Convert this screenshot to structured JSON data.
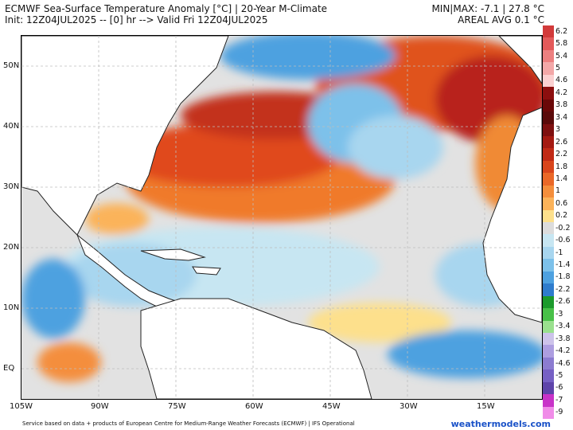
{
  "header": {
    "title": "ECMWF Sea-Surface Temperature Anomaly [°C] | 20-Year M-Climate",
    "init_line": "Init: 12Z04JUL2025 -- [0] hr --> Valid Fri 12Z04JUL2025",
    "minmax": "MIN|MAX: -7.1 | 27.8 °C",
    "areal_avg": "AREAL AVG 0.1 °C"
  },
  "axes": {
    "lat_labels": [
      "50N",
      "40N",
      "30N",
      "20N",
      "10N",
      "EQ"
    ],
    "lon_labels": [
      "105W",
      "90W",
      "75W",
      "60W",
      "45W",
      "30W",
      "15W"
    ]
  },
  "colorbar": {
    "labels": [
      "6.2",
      "5.8",
      "5.4",
      "5",
      "4.6",
      "4.2",
      "3.8",
      "3.4",
      "3",
      "2.6",
      "2.2",
      "1.8",
      "1.4",
      "1",
      "0.6",
      "0.2",
      "-0.2",
      "-0.6",
      "-1",
      "-1.4",
      "-1.8",
      "-2.2",
      "-2.6",
      "-3",
      "-3.4",
      "-3.8",
      "-4.2",
      "-4.6",
      "-5",
      "-6",
      "-7",
      "-9"
    ],
    "colors": [
      "#d23a3a",
      "#e35a5a",
      "#ec8080",
      "#f3a8a8",
      "#fbd0d0",
      "#8c0e0e",
      "#6a0808",
      "#5a0a0a",
      "#7e1010",
      "#a41a12",
      "#c02a16",
      "#d8451c",
      "#ea6828",
      "#f48e3c",
      "#fbb35a",
      "#fde08c",
      "#dcdcdc",
      "#c7e6f2",
      "#a8d6ef",
      "#7dc1ea",
      "#4ea1e0",
      "#2f7ccd",
      "#1c9a2c",
      "#48c048",
      "#9ae08e",
      "#cdc3ea",
      "#ad9ee0",
      "#8c7cd1",
      "#7660c4",
      "#5e44aa",
      "#c833c8",
      "#f08ce8"
    ]
  },
  "footer": {
    "credit": "Service based on data + products of European Centre for Medium-Range Weather Forecasts (ECMWF) | IFS Operational",
    "brand": "weathermodels.com"
  }
}
